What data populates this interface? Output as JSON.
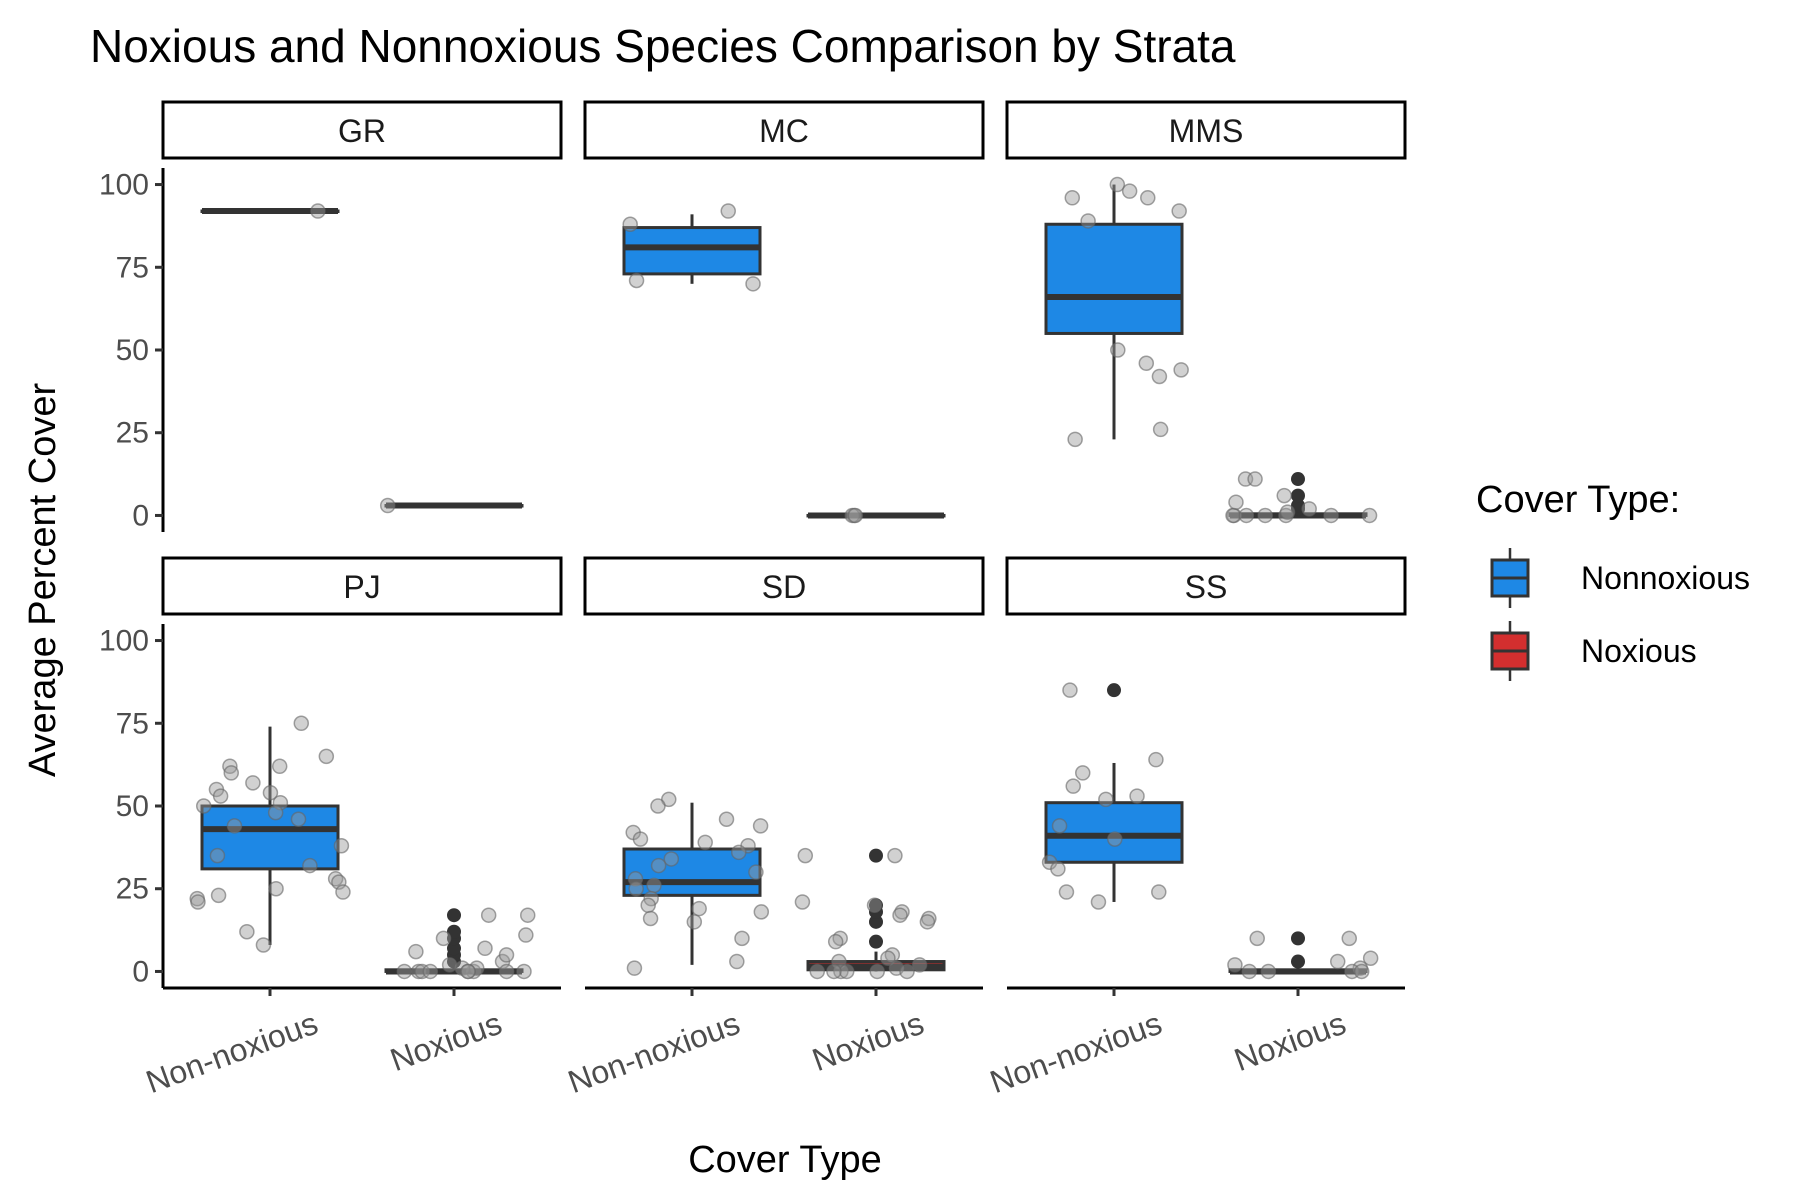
{
  "chart_data": {
    "type": "boxplot",
    "title": "Noxious and Nonnoxious Species Comparison by Strata",
    "xlabel": "Cover Type",
    "ylabel": "Average Percent Cover",
    "ylim": [
      -5,
      105
    ],
    "yticks": [
      0,
      25,
      50,
      75,
      100
    ],
    "categories": [
      "Non-noxious",
      "Noxious"
    ],
    "grid": false,
    "legend": {
      "title": "Cover Type:",
      "position": "right",
      "entries": [
        {
          "name": "Nonnoxious",
          "color": "#1E88E5"
        },
        {
          "name": "Noxious",
          "color": "#D32F2F"
        }
      ]
    },
    "colors": {
      "Non-noxious": "#1E88E5",
      "Noxious": "#D32F2F"
    },
    "panels": [
      {
        "strata": "GR",
        "boxes": [
          {
            "category": "Non-noxious",
            "q1": 92,
            "median": 92,
            "q3": 92,
            "whisker_low": 92,
            "whisker_high": 92,
            "outliers": [],
            "points": [
              92
            ]
          },
          {
            "category": "Noxious",
            "q1": 3,
            "median": 3,
            "q3": 3,
            "whisker_low": 3,
            "whisker_high": 3,
            "outliers": [],
            "points": [
              3
            ]
          }
        ]
      },
      {
        "strata": "MC",
        "boxes": [
          {
            "category": "Non-noxious",
            "q1": 73,
            "median": 81,
            "q3": 87,
            "whisker_low": 70,
            "whisker_high": 91,
            "outliers": [],
            "points": [
              70,
              71,
              92,
              88
            ]
          },
          {
            "category": "Noxious",
            "q1": 0,
            "median": 0,
            "q3": 0,
            "whisker_low": 0,
            "whisker_high": 0,
            "outliers": [],
            "points": [
              0,
              0,
              0
            ]
          }
        ]
      },
      {
        "strata": "MMS",
        "boxes": [
          {
            "category": "Non-noxious",
            "q1": 55,
            "median": 66,
            "q3": 88,
            "whisker_low": 23,
            "whisker_high": 100,
            "outliers": [],
            "points": [
              100,
              98,
              96,
              96,
              92,
              89,
              50,
              46,
              44,
              42,
              26,
              23
            ]
          },
          {
            "category": "Noxious",
            "q1": 0,
            "median": 0,
            "q3": 0.5,
            "whisker_low": 0,
            "whisker_high": 1,
            "outliers": [
              2,
              3,
              6,
              11
            ],
            "points": [
              0,
              0,
              0,
              0,
              0,
              1,
              2,
              4,
              6,
              11,
              11,
              0,
              0
            ]
          }
        ]
      },
      {
        "strata": "PJ",
        "boxes": [
          {
            "category": "Non-noxious",
            "q1": 31,
            "median": 43,
            "q3": 50,
            "whisker_low": 8,
            "whisker_high": 74,
            "outliers": [],
            "points": [
              75,
              65,
              62,
              62,
              60,
              57,
              55,
              54,
              53,
              51,
              50,
              48,
              46,
              44,
              38,
              35,
              32,
              28,
              27,
              25,
              24,
              23,
              22,
              21,
              12,
              8
            ]
          },
          {
            "category": "Noxious",
            "q1": 0,
            "median": 0,
            "q3": 0.5,
            "whisker_low": 0,
            "whisker_high": 1,
            "outliers": [
              3,
              5,
              7,
              10,
              12,
              17
            ],
            "points": [
              0,
              0,
              0,
              0,
              0,
              0,
              1,
              1,
              2,
              3,
              5,
              6,
              7,
              10,
              11,
              17,
              17,
              0,
              0,
              0
            ]
          }
        ]
      },
      {
        "strata": "SD",
        "boxes": [
          {
            "category": "Non-noxious",
            "q1": 23,
            "median": 27,
            "q3": 37,
            "whisker_low": 2,
            "whisker_high": 51,
            "outliers": [],
            "points": [
              52,
              50,
              46,
              44,
              42,
              40,
              39,
              38,
              36,
              34,
              32,
              30,
              28,
              26,
              25,
              22,
              20,
              19,
              18,
              16,
              15,
              10,
              3,
              1
            ]
          },
          {
            "category": "Noxious",
            "q1": 0.5,
            "median": 1.5,
            "q3": 3,
            "whisker_low": 0,
            "whisker_high": 6,
            "outliers": [
              9,
              15,
              18,
              20,
              35
            ],
            "points": [
              35,
              35,
              21,
              20,
              18,
              17,
              16,
              15,
              10,
              9,
              5,
              4,
              3,
              2,
              1,
              0,
              0,
              0,
              0,
              0,
              0
            ]
          }
        ]
      },
      {
        "strata": "SS",
        "boxes": [
          {
            "category": "Non-noxious",
            "q1": 33,
            "median": 41,
            "q3": 51,
            "whisker_low": 21,
            "whisker_high": 63,
            "outliers": [
              85
            ],
            "points": [
              85,
              64,
              60,
              56,
              53,
              52,
              44,
              40,
              33,
              31,
              24,
              24,
              21
            ]
          },
          {
            "category": "Noxious",
            "q1": 0,
            "median": 0,
            "q3": 0.5,
            "whisker_low": 0,
            "whisker_high": 1,
            "outliers": [
              3,
              10
            ],
            "points": [
              10,
              10,
              4,
              3,
              2,
              1,
              0,
              0,
              0,
              0
            ]
          }
        ]
      }
    ]
  }
}
